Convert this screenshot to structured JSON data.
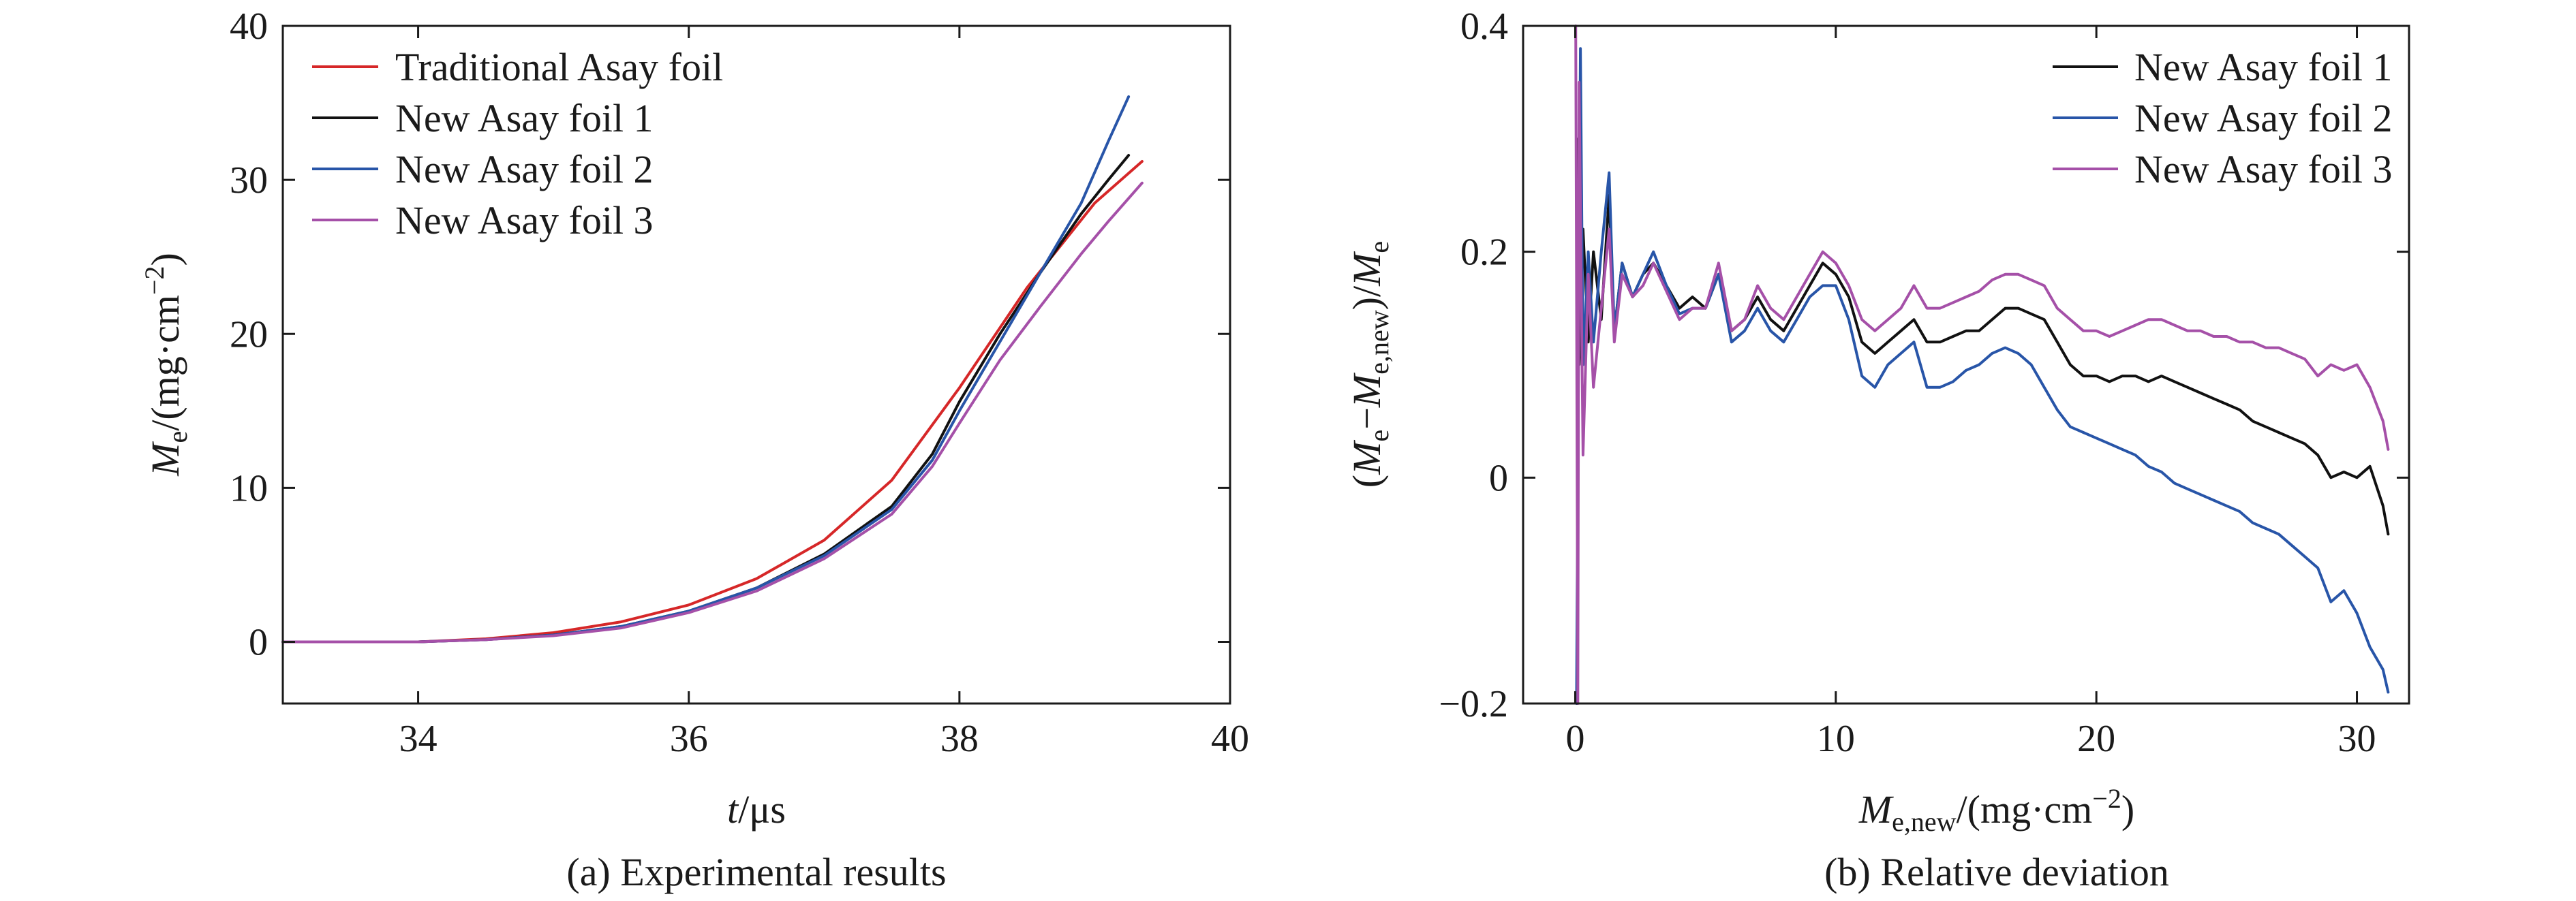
{
  "chart_data": [
    {
      "type": "line",
      "caption": "(a) Experimental results",
      "xlabel": {
        "var": "t",
        "unit": "/μs"
      },
      "ylabel": {
        "var": "M",
        "sub": "e",
        "unit": "/(mg·cm",
        "sup": "−2",
        "close": ")"
      },
      "xlim": [
        33,
        40
      ],
      "ylim": [
        -4,
        40
      ],
      "xticks": [
        34,
        36,
        38,
        40
      ],
      "xtick_labels": [
        "34",
        "36",
        "38",
        "40"
      ],
      "yticks": [
        0,
        10,
        20,
        30,
        40
      ],
      "ytick_labels": [
        "0",
        "10",
        "20",
        "30",
        "40"
      ],
      "grid": false,
      "legend_position": "top-left",
      "series": [
        {
          "name": "Traditional Asay foil",
          "color": "#d62728",
          "x": [
            33.0,
            34.0,
            34.5,
            35.0,
            35.5,
            36.0,
            36.5,
            37.0,
            37.5,
            38.0,
            38.5,
            39.0,
            39.35
          ],
          "y": [
            0,
            0,
            0.2,
            0.6,
            1.3,
            2.4,
            4.1,
            6.6,
            10.5,
            16.5,
            23.0,
            28.5,
            31.2
          ]
        },
        {
          "name": "New Asay foil 1",
          "color": "#111111",
          "x": [
            33.0,
            34.0,
            34.5,
            35.0,
            35.5,
            36.0,
            36.5,
            37.0,
            37.5,
            37.8,
            38.0,
            38.3,
            38.6,
            38.9,
            39.1,
            39.25
          ],
          "y": [
            0,
            0,
            0.15,
            0.45,
            1.0,
            2.0,
            3.5,
            5.7,
            8.8,
            12.2,
            15.6,
            20.0,
            24.0,
            27.8,
            30.0,
            31.6
          ]
        },
        {
          "name": "New Asay foil 2",
          "color": "#2855a8",
          "x": [
            33.0,
            34.0,
            34.5,
            35.0,
            35.5,
            36.0,
            36.5,
            37.0,
            37.5,
            37.8,
            38.0,
            38.3,
            38.6,
            38.9,
            39.1,
            39.25
          ],
          "y": [
            0,
            0,
            0.15,
            0.45,
            1.0,
            2.0,
            3.5,
            5.6,
            8.6,
            11.8,
            15.0,
            19.5,
            24.0,
            28.5,
            32.5,
            35.4
          ]
        },
        {
          "name": "New Asay foil 3",
          "color": "#a550a8",
          "x": [
            33.0,
            34.0,
            34.5,
            35.0,
            35.5,
            36.0,
            36.5,
            37.0,
            37.5,
            37.8,
            38.0,
            38.3,
            38.6,
            38.9,
            39.1,
            39.35
          ],
          "y": [
            0,
            0,
            0.15,
            0.4,
            0.9,
            1.9,
            3.3,
            5.4,
            8.3,
            11.4,
            14.2,
            18.3,
            21.8,
            25.2,
            27.3,
            29.8
          ]
        }
      ]
    },
    {
      "type": "line",
      "caption": "(b) Relative deviation",
      "xlabel": {
        "var": "M",
        "sub": "e,new",
        "unit": "/(mg·cm",
        "sup": "−2",
        "close": ")"
      },
      "ylabel": {
        "open": "(",
        "var1": "M",
        "sub1": "e",
        "minus": "−",
        "var2": "M",
        "sub2": "e,new",
        "mid": ")/",
        "var3": "M",
        "sub3": "e"
      },
      "xlim": [
        -2,
        32
      ],
      "ylim": [
        -0.2,
        0.4
      ],
      "xticks": [
        0,
        10,
        20,
        30
      ],
      "xtick_labels": [
        "0",
        "10",
        "20",
        "30"
      ],
      "yticks": [
        -0.2,
        0,
        0.2,
        0.4
      ],
      "ytick_labels": [
        "−0.2",
        "0",
        "0.2",
        "0.4"
      ],
      "grid": false,
      "legend_position": "top-right",
      "series": [
        {
          "name": "New Asay foil 1",
          "color": "#111111",
          "x": [
            0.05,
            0.15,
            0.3,
            0.5,
            0.7,
            1.0,
            1.3,
            1.5,
            1.8,
            2.2,
            2.6,
            3.0,
            3.5,
            4.0,
            4.5,
            5.0,
            5.5,
            6.0,
            6.5,
            7.0,
            7.5,
            8.0,
            8.5,
            9.0,
            9.5,
            10.0,
            10.5,
            11.0,
            11.5,
            12.0,
            12.5,
            13.0,
            13.5,
            14.0,
            14.5,
            15.0,
            15.5,
            16.0,
            16.5,
            17.0,
            17.5,
            18.0,
            18.5,
            19.0,
            19.5,
            20.0,
            20.5,
            21.0,
            21.5,
            22.0,
            22.5,
            23.0,
            23.5,
            24.0,
            24.5,
            25.0,
            25.5,
            26.0,
            26.5,
            27.0,
            27.5,
            28.0,
            28.5,
            29.0,
            29.5,
            30.0,
            30.5,
            31.0,
            31.2
          ],
          "y": [
            0.3,
            0.1,
            0.22,
            0.12,
            0.2,
            0.14,
            0.25,
            0.13,
            0.19,
            0.16,
            0.18,
            0.19,
            0.17,
            0.15,
            0.16,
            0.15,
            0.18,
            0.13,
            0.14,
            0.16,
            0.14,
            0.13,
            0.15,
            0.17,
            0.19,
            0.18,
            0.16,
            0.12,
            0.11,
            0.12,
            0.13,
            0.14,
            0.12,
            0.12,
            0.125,
            0.13,
            0.13,
            0.14,
            0.15,
            0.15,
            0.145,
            0.14,
            0.12,
            0.1,
            0.09,
            0.09,
            0.085,
            0.09,
            0.09,
            0.085,
            0.09,
            0.085,
            0.08,
            0.075,
            0.07,
            0.065,
            0.06,
            0.05,
            0.045,
            0.04,
            0.035,
            0.03,
            0.02,
            0.0,
            0.005,
            0.0,
            0.01,
            -0.025,
            -0.05
          ]
        },
        {
          "name": "New Asay foil 2",
          "color": "#2855a8",
          "x": [
            0.05,
            0.15,
            0.2,
            0.3,
            0.5,
            0.7,
            1.0,
            1.3,
            1.5,
            1.8,
            2.2,
            2.6,
            3.0,
            3.5,
            4.0,
            4.5,
            5.0,
            5.5,
            6.0,
            6.5,
            7.0,
            7.5,
            8.0,
            8.5,
            9.0,
            9.5,
            10.0,
            10.5,
            11.0,
            11.5,
            12.0,
            12.5,
            13.0,
            13.5,
            14.0,
            14.5,
            15.0,
            15.5,
            16.0,
            16.5,
            17.0,
            17.5,
            18.0,
            18.5,
            19.0,
            19.5,
            20.0,
            20.5,
            21.0,
            21.5,
            22.0,
            22.5,
            23.0,
            23.5,
            24.0,
            24.5,
            25.0,
            25.5,
            26.0,
            26.5,
            27.0,
            27.5,
            28.0,
            28.5,
            29.0,
            29.5,
            30.0,
            30.5,
            31.0,
            31.2
          ],
          "y": [
            -0.2,
            0.2,
            0.38,
            0.1,
            0.2,
            0.12,
            0.2,
            0.27,
            0.13,
            0.19,
            0.16,
            0.18,
            0.2,
            0.17,
            0.145,
            0.15,
            0.15,
            0.18,
            0.12,
            0.13,
            0.15,
            0.13,
            0.12,
            0.14,
            0.16,
            0.17,
            0.17,
            0.14,
            0.09,
            0.08,
            0.1,
            0.11,
            0.12,
            0.08,
            0.08,
            0.085,
            0.095,
            0.1,
            0.11,
            0.115,
            0.11,
            0.1,
            0.08,
            0.06,
            0.045,
            0.04,
            0.035,
            0.03,
            0.025,
            0.02,
            0.01,
            0.005,
            -0.005,
            -0.01,
            -0.015,
            -0.02,
            -0.025,
            -0.03,
            -0.04,
            -0.045,
            -0.05,
            -0.06,
            -0.07,
            -0.08,
            -0.11,
            -0.1,
            -0.12,
            -0.15,
            -0.17,
            -0.19
          ]
        },
        {
          "name": "New Asay foil 3",
          "color": "#a550a8",
          "x": [
            0.02,
            0.1,
            0.15,
            0.3,
            0.5,
            0.7,
            1.0,
            1.3,
            1.5,
            1.8,
            2.2,
            2.6,
            3.0,
            3.5,
            4.0,
            4.5,
            5.0,
            5.5,
            6.0,
            6.5,
            7.0,
            7.5,
            8.0,
            8.5,
            9.0,
            9.5,
            10.0,
            10.5,
            11.0,
            11.5,
            12.0,
            12.5,
            13.0,
            13.5,
            14.0,
            14.5,
            15.0,
            15.5,
            16.0,
            16.5,
            17.0,
            17.5,
            18.0,
            18.5,
            19.0,
            19.5,
            20.0,
            20.5,
            21.0,
            21.5,
            22.0,
            22.5,
            23.0,
            23.5,
            24.0,
            24.5,
            25.0,
            25.5,
            26.0,
            26.5,
            27.0,
            27.5,
            28.0,
            28.5,
            29.0,
            29.5,
            30.0,
            30.5,
            31.0,
            31.2
          ],
          "y": [
            0.4,
            -0.2,
            0.35,
            0.02,
            0.18,
            0.08,
            0.15,
            0.22,
            0.12,
            0.18,
            0.16,
            0.17,
            0.19,
            0.165,
            0.14,
            0.15,
            0.15,
            0.19,
            0.13,
            0.14,
            0.17,
            0.15,
            0.14,
            0.16,
            0.18,
            0.2,
            0.19,
            0.17,
            0.14,
            0.13,
            0.14,
            0.15,
            0.17,
            0.15,
            0.15,
            0.155,
            0.16,
            0.165,
            0.175,
            0.18,
            0.18,
            0.175,
            0.17,
            0.15,
            0.14,
            0.13,
            0.13,
            0.125,
            0.13,
            0.135,
            0.14,
            0.14,
            0.135,
            0.13,
            0.13,
            0.125,
            0.125,
            0.12,
            0.12,
            0.115,
            0.115,
            0.11,
            0.105,
            0.09,
            0.1,
            0.095,
            0.1,
            0.08,
            0.05,
            0.025
          ]
        }
      ]
    }
  ]
}
